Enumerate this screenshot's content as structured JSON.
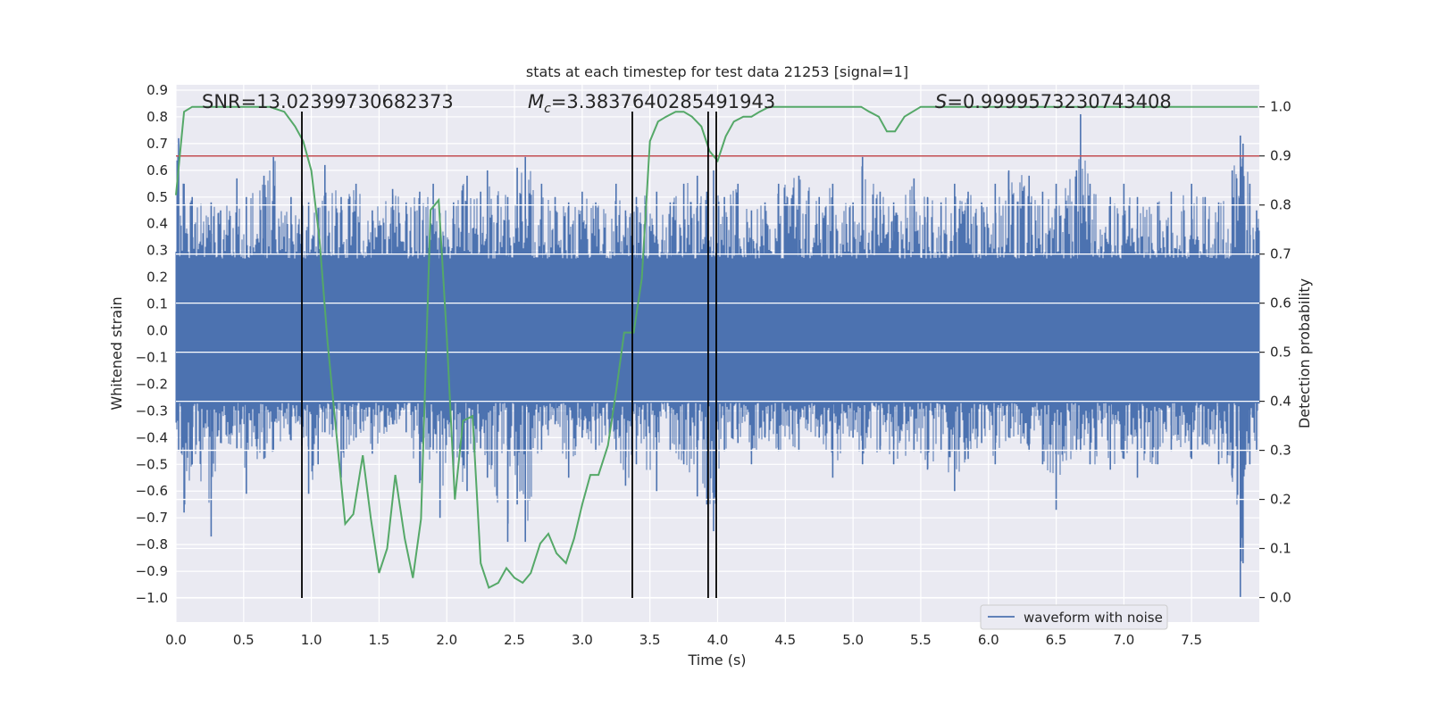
{
  "chart_data": {
    "type": "line",
    "title": "stats at each timestep for test data 21253 [signal=1]",
    "xlabel": "Time (s)",
    "ylabel": "Whitened strain",
    "y2label": "Detection probability",
    "xlim": [
      0.0,
      8.0
    ],
    "ylim": [
      -1.09,
      0.92
    ],
    "y2lim": [
      -0.05,
      1.045
    ],
    "x_ticks": [
      0.0,
      0.5,
      1.0,
      1.5,
      2.0,
      2.5,
      3.0,
      3.5,
      4.0,
      4.5,
      5.0,
      5.5,
      6.0,
      6.5,
      7.0,
      7.5
    ],
    "x_tick_labels": [
      "0.0",
      "0.5",
      "1.0",
      "1.5",
      "2.0",
      "2.5",
      "3.0",
      "3.5",
      "4.0",
      "4.5",
      "5.0",
      "5.5",
      "6.0",
      "6.5",
      "7.0",
      "7.5"
    ],
    "y_ticks": [
      0.9,
      0.8,
      0.7,
      0.6,
      0.5,
      0.4,
      0.3,
      0.2,
      0.1,
      0.0,
      -0.1,
      -0.2,
      -0.3,
      -0.4,
      -0.5,
      -0.6,
      -0.7,
      -0.8,
      -0.9,
      -1.0
    ],
    "y_tick_labels": [
      "0.9",
      "0.8",
      "0.7",
      "0.6",
      "0.5",
      "0.4",
      "0.3",
      "0.2",
      "0.1",
      "0.0",
      "−0.1",
      "−0.2",
      "−0.3",
      "−0.4",
      "−0.5",
      "−0.6",
      "−0.7",
      "−0.8",
      "−0.9",
      "−1.0"
    ],
    "y2_ticks": [
      1.0,
      0.9,
      0.8,
      0.7,
      0.6,
      0.5,
      0.4,
      0.3,
      0.2,
      0.1,
      0.0
    ],
    "y2_tick_labels": [
      "1.0",
      "0.9",
      "0.8",
      "0.7",
      "0.6",
      "0.5",
      "0.4",
      "0.3",
      "0.2",
      "0.1",
      "0.0"
    ],
    "series": [
      {
        "name": "waveform with noise",
        "axis": "left",
        "color": "#4c72b0",
        "band": 0.27,
        "spike_samples": [
          [
            0.02,
            0.72,
            -0.45
          ],
          [
            0.06,
            0.55,
            -0.68
          ],
          [
            0.12,
            0.5,
            -0.5
          ],
          [
            0.26,
            0.48,
            -0.77
          ],
          [
            0.33,
            0.45,
            -0.42
          ],
          [
            0.45,
            0.57,
            -0.44
          ],
          [
            0.52,
            0.5,
            -0.61
          ],
          [
            0.65,
            0.58,
            -0.48
          ],
          [
            0.72,
            0.65,
            -0.45
          ],
          [
            0.85,
            0.5,
            -0.41
          ],
          [
            0.93,
            0.52,
            -0.43
          ],
          [
            0.98,
            0.48,
            -0.61
          ],
          [
            1.05,
            0.46,
            -0.5
          ],
          [
            1.1,
            0.62,
            -0.38
          ],
          [
            1.22,
            0.5,
            -0.55
          ],
          [
            1.33,
            0.55,
            -0.4
          ],
          [
            1.45,
            0.45,
            -0.46
          ],
          [
            1.6,
            0.53,
            -0.35
          ],
          [
            1.7,
            0.48,
            -0.38
          ],
          [
            1.8,
            0.52,
            -0.57
          ],
          [
            1.9,
            0.55,
            -0.45
          ],
          [
            1.95,
            0.44,
            -0.7
          ],
          [
            2.05,
            0.48,
            -0.52
          ],
          [
            2.15,
            0.58,
            -0.6
          ],
          [
            2.25,
            0.52,
            -0.44
          ],
          [
            2.3,
            0.6,
            -0.55
          ],
          [
            2.45,
            0.5,
            -0.79
          ],
          [
            2.52,
            0.61,
            -0.65
          ],
          [
            2.58,
            0.65,
            -0.79
          ],
          [
            2.7,
            0.55,
            -0.45
          ],
          [
            2.8,
            0.5,
            -0.35
          ],
          [
            2.9,
            0.48,
            -0.55
          ],
          [
            3.0,
            0.52,
            -0.4
          ],
          [
            3.1,
            0.48,
            -0.45
          ],
          [
            3.25,
            0.55,
            -0.45
          ],
          [
            3.32,
            0.45,
            -0.58
          ],
          [
            3.4,
            0.5,
            -0.5
          ],
          [
            3.55,
            0.52,
            -0.6
          ],
          [
            3.65,
            0.48,
            -0.45
          ],
          [
            3.75,
            0.55,
            -0.5
          ],
          [
            3.85,
            0.58,
            -0.62
          ],
          [
            3.92,
            0.52,
            -0.65
          ],
          [
            3.97,
            0.6,
            -0.75
          ],
          [
            4.05,
            0.5,
            -0.45
          ],
          [
            4.15,
            0.55,
            -0.42
          ],
          [
            4.25,
            0.45,
            -0.5
          ],
          [
            4.35,
            0.48,
            -0.4
          ],
          [
            4.45,
            0.55,
            -0.45
          ],
          [
            4.6,
            0.58,
            -0.45
          ],
          [
            4.75,
            0.5,
            -0.4
          ],
          [
            4.85,
            0.55,
            -0.55
          ],
          [
            5.0,
            0.48,
            -0.4
          ],
          [
            5.07,
            0.65,
            -0.5
          ],
          [
            5.2,
            0.52,
            -0.45
          ],
          [
            5.3,
            0.48,
            -0.5
          ],
          [
            5.45,
            0.57,
            -0.45
          ],
          [
            5.55,
            0.5,
            -0.52
          ],
          [
            5.65,
            0.48,
            -0.45
          ],
          [
            5.75,
            0.55,
            -0.6
          ],
          [
            5.85,
            0.52,
            -0.48
          ],
          [
            5.95,
            0.48,
            -0.42
          ],
          [
            6.05,
            0.55,
            -0.5
          ],
          [
            6.15,
            0.6,
            -0.4
          ],
          [
            6.3,
            0.58,
            -0.45
          ],
          [
            6.4,
            0.52,
            -0.5
          ],
          [
            6.5,
            0.55,
            -0.67
          ],
          [
            6.65,
            0.6,
            -0.45
          ],
          [
            6.68,
            0.81,
            -0.45
          ],
          [
            6.75,
            0.55,
            -0.5
          ],
          [
            6.9,
            0.5,
            -0.52
          ],
          [
            7.0,
            0.55,
            -0.48
          ],
          [
            7.1,
            0.5,
            -0.55
          ],
          [
            7.25,
            0.48,
            -0.5
          ],
          [
            7.35,
            0.52,
            -0.45
          ],
          [
            7.5,
            0.55,
            -0.48
          ],
          [
            7.6,
            0.5,
            -0.42
          ],
          [
            7.7,
            0.48,
            -0.5
          ],
          [
            7.8,
            0.6,
            -0.55
          ],
          [
            7.86,
            0.73,
            -1.0
          ],
          [
            7.88,
            0.7,
            -0.87
          ],
          [
            7.93,
            0.55,
            -0.5
          ],
          [
            7.98,
            0.45,
            -0.45
          ]
        ]
      },
      {
        "name": "detection probability",
        "axis": "right",
        "color": "#55a868",
        "x": [
          0.0,
          0.06,
          0.12,
          0.25,
          0.5,
          0.69,
          0.8,
          0.88,
          0.94,
          1.0,
          1.06,
          1.12,
          1.19,
          1.25,
          1.31,
          1.38,
          1.44,
          1.5,
          1.56,
          1.62,
          1.69,
          1.75,
          1.81,
          1.88,
          1.94,
          2.0,
          2.06,
          2.12,
          2.19,
          2.25,
          2.31,
          2.38,
          2.44,
          2.5,
          2.56,
          2.62,
          2.69,
          2.75,
          2.81,
          2.88,
          2.94,
          3.0,
          3.06,
          3.12,
          3.19,
          3.25,
          3.31,
          3.38,
          3.44,
          3.5,
          3.56,
          3.62,
          3.69,
          3.75,
          3.81,
          3.88,
          3.94,
          4.0,
          4.06,
          4.12,
          4.19,
          4.25,
          4.31,
          4.38,
          4.5,
          4.75,
          5.0,
          5.06,
          5.12,
          5.19,
          5.25,
          5.31,
          5.38,
          5.44,
          5.5,
          5.75,
          6.0,
          6.5,
          7.0,
          7.5,
          7.99
        ],
        "values": [
          0.82,
          0.99,
          1.0,
          1.0,
          1.0,
          1.0,
          0.99,
          0.96,
          0.93,
          0.87,
          0.73,
          0.52,
          0.32,
          0.15,
          0.17,
          0.29,
          0.16,
          0.05,
          0.1,
          0.25,
          0.12,
          0.04,
          0.16,
          0.79,
          0.81,
          0.53,
          0.2,
          0.36,
          0.37,
          0.07,
          0.02,
          0.03,
          0.06,
          0.04,
          0.03,
          0.05,
          0.11,
          0.13,
          0.09,
          0.07,
          0.12,
          0.19,
          0.25,
          0.25,
          0.31,
          0.42,
          0.54,
          0.54,
          0.65,
          0.93,
          0.97,
          0.98,
          0.99,
          0.99,
          0.98,
          0.96,
          0.91,
          0.89,
          0.94,
          0.97,
          0.98,
          0.98,
          0.99,
          1.0,
          1.0,
          1.0,
          1.0,
          1.0,
          0.99,
          0.98,
          0.95,
          0.95,
          0.98,
          0.99,
          1.0,
          1.0,
          1.0,
          1.0,
          1.0,
          1.0,
          1.0
        ]
      },
      {
        "name": "threshold",
        "axis": "right",
        "color": "#c44e52",
        "y": 0.9
      }
    ],
    "vlines": [
      0.93,
      3.37,
      3.93,
      3.99
    ],
    "vline_range": [
      -1.0,
      0.82
    ],
    "annotations": [
      {
        "label": "SNR",
        "text": "SNR=13.02399730682373"
      },
      {
        "label": "Mc",
        "prefix": "M",
        "sub": "c",
        "text": "=3.3837640285491943"
      },
      {
        "label": "S",
        "prefix": "S",
        "text": "=0.9999573230743408"
      }
    ],
    "legend": {
      "position": "lower-right",
      "entries": [
        "waveform with noise"
      ]
    },
    "grid": true,
    "background": "#eaeaf2"
  }
}
